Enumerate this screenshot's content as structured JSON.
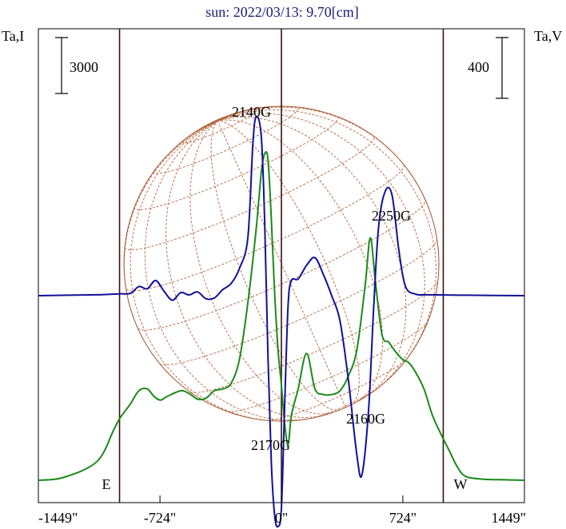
{
  "chart_data": {
    "type": "line",
    "title": "sun: 2022/03/13: 9.70[cm]",
    "left_axis_label": "Ta,I",
    "right_axis_label": "Ta,V",
    "left_scale_bar": "3000",
    "right_scale_bar": "400",
    "x_ticks": [
      {
        "value": -1449,
        "label": "-1449\""
      },
      {
        "value": -724,
        "label": "-724\""
      },
      {
        "value": 0,
        "label": "0\""
      },
      {
        "value": 724,
        "label": "724\""
      },
      {
        "value": 1449,
        "label": "1449\""
      }
    ],
    "xlim": [
      -1449,
      1449
    ],
    "limb_markers": [
      {
        "label": "E",
        "x": -965
      },
      {
        "label": "W",
        "x": 965
      }
    ],
    "annotations": [
      {
        "label": "2140G",
        "x": -150
      },
      {
        "label": "2250G",
        "x": 660
      },
      {
        "label": "2160G",
        "x": 520
      },
      {
        "label": "2170G",
        "x": -20
      }
    ],
    "series": [
      {
        "color": "#1a8a1a",
        "axis": "left",
        "x": [
          -1449,
          -1300,
          -1100,
          -1000,
          -965,
          -900,
          -850,
          -800,
          -760,
          -720,
          -680,
          -600,
          -550,
          -500,
          -450,
          -400,
          -350,
          -300,
          -250,
          -200,
          -150,
          -120,
          -100,
          -80,
          -60,
          -40,
          -20,
          0,
          20,
          40,
          60,
          100,
          150,
          200,
          250,
          300,
          350,
          400,
          450,
          500,
          530,
          560,
          600,
          640,
          680,
          720,
          760,
          800,
          850,
          900,
          950,
          1000,
          1050,
          1100,
          1200,
          1300,
          1449
        ],
        "y": [
          0,
          150,
          1000,
          2700,
          3300,
          4100,
          4800,
          4900,
          4500,
          4300,
          4500,
          4800,
          4650,
          4350,
          4400,
          4800,
          4900,
          5200,
          6500,
          9500,
          13500,
          16500,
          17500,
          17200,
          14000,
          10000,
          7000,
          5100,
          3000,
          1900,
          3500,
          4900,
          6800,
          4900,
          4600,
          4600,
          4800,
          5600,
          7000,
          10500,
          13000,
          10700,
          7800,
          7400,
          6900,
          6500,
          6300,
          5800,
          4900,
          3500,
          2500,
          1600,
          700,
          200,
          60,
          30,
          0
        ]
      },
      {
        "color": "#10109a",
        "axis": "right",
        "x": [
          -1449,
          -1100,
          -965,
          -900,
          -850,
          -800,
          -750,
          -700,
          -650,
          -600,
          -550,
          -500,
          -450,
          -400,
          -350,
          -300,
          -250,
          -200,
          -170,
          -150,
          -120,
          -100,
          -80,
          -60,
          -40,
          -20,
          0,
          20,
          40,
          60,
          100,
          150,
          200,
          250,
          300,
          350,
          400,
          450,
          480,
          520,
          550,
          580,
          620,
          660,
          700,
          740,
          800,
          850,
          965,
          1100,
          1449
        ],
        "y": [
          0,
          6,
          12,
          15,
          60,
          45,
          100,
          30,
          -30,
          20,
          5,
          25,
          -20,
          -15,
          40,
          80,
          180,
          380,
          1000,
          1180,
          1050,
          500,
          -400,
          -1100,
          -1450,
          -1520,
          -1400,
          -700,
          -60,
          100,
          110,
          200,
          250,
          140,
          0,
          -170,
          -560,
          -1050,
          -1180,
          -750,
          -80,
          460,
          690,
          660,
          300,
          60,
          10,
          6,
          5,
          3,
          0
        ]
      }
    ]
  }
}
